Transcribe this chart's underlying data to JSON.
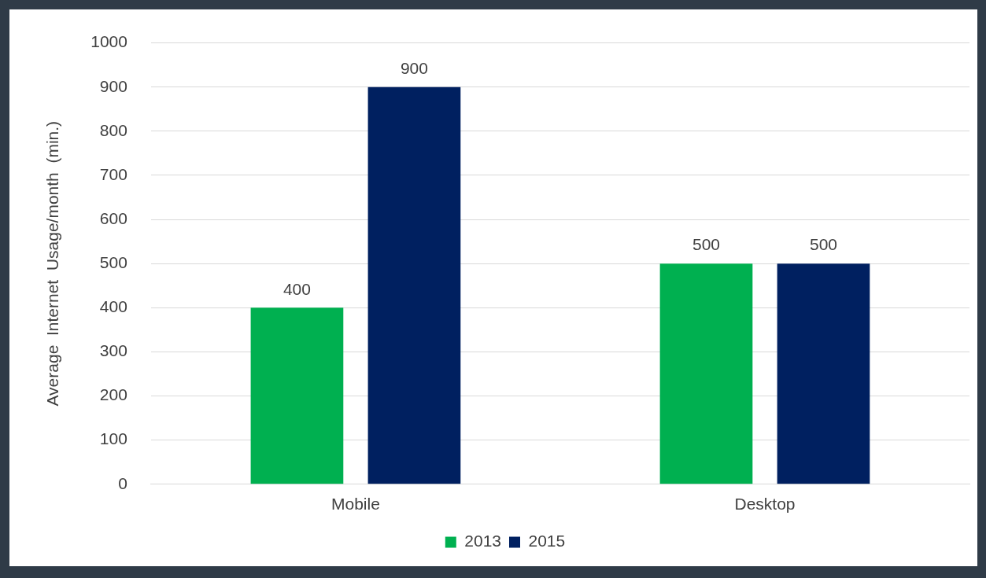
{
  "chart_data": {
    "type": "bar",
    "ylabel": "Average  Internet  Usage/month  (min.)",
    "categories": [
      "Mobile",
      "Desktop"
    ],
    "series": [
      {
        "name": "2013",
        "color": "#00b050",
        "values": [
          400,
          500
        ]
      },
      {
        "name": "2015",
        "color": "#002060",
        "values": [
          900,
          500
        ]
      }
    ],
    "ylim": [
      0,
      1000
    ],
    "yticks": [
      0,
      100,
      200,
      300,
      400,
      500,
      600,
      700,
      800,
      900,
      1000
    ],
    "grid": "y",
    "legend": "bottom",
    "data_labels": true
  }
}
